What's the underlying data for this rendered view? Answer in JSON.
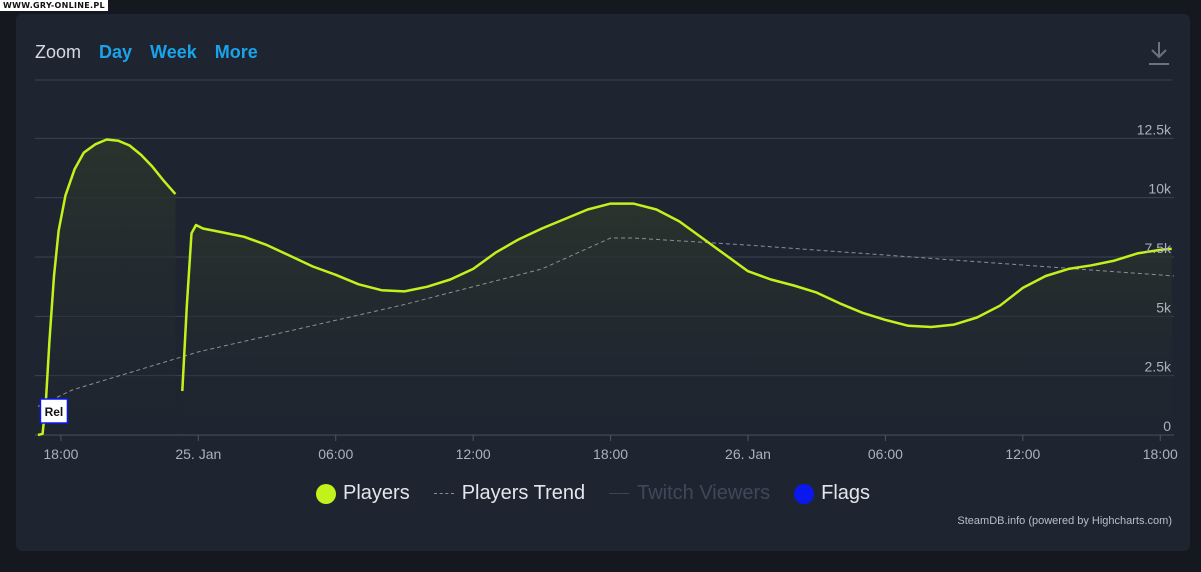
{
  "watermark": "WWW.GRY-ONLINE.PL",
  "zoom": {
    "label": "Zoom",
    "buttons": [
      "Day",
      "Week",
      "More"
    ]
  },
  "icons": {
    "download": "download-icon"
  },
  "colors": {
    "players": "#c2f21c",
    "trend": "#8a8f98",
    "twitch": "#3a4556",
    "flags": "#0a18ee",
    "grid": "#3a4352",
    "axis_text": "#aab2bd"
  },
  "legend": [
    {
      "label": "Players",
      "symbol": "dot",
      "color": "#c2f21c",
      "active": true
    },
    {
      "label": "Players Trend",
      "symbol": "dash",
      "color": "#8a8f98",
      "active": true
    },
    {
      "label": "Twitch Viewers",
      "symbol": "line",
      "color": "#3a4556",
      "active": false
    },
    {
      "label": "Flags",
      "symbol": "dot",
      "color": "#0a18ee",
      "active": true
    }
  ],
  "credits": "SteamDB.info (powered by Highcharts.com)",
  "chart_data": {
    "type": "line",
    "x_unit": "hours since 24 Jan 17:00",
    "xlim": [
      0,
      49.6
    ],
    "ylim": [
      0,
      15000
    ],
    "y_ticks": [
      {
        "value": 0,
        "label": "0"
      },
      {
        "value": 2500,
        "label": "2.5k"
      },
      {
        "value": 5000,
        "label": "5k"
      },
      {
        "value": 7500,
        "label": "7.5k"
      },
      {
        "value": 10000,
        "label": "10k"
      },
      {
        "value": 12500,
        "label": "12.5k"
      }
    ],
    "x_ticks": [
      {
        "value": 1,
        "label": "18:00"
      },
      {
        "value": 7,
        "label": "25. Jan"
      },
      {
        "value": 13,
        "label": "06:00"
      },
      {
        "value": 19,
        "label": "12:00"
      },
      {
        "value": 25,
        "label": "18:00"
      },
      {
        "value": 31,
        "label": "26. Jan"
      },
      {
        "value": 37,
        "label": "06:00"
      },
      {
        "value": 43,
        "label": "12:00"
      },
      {
        "value": 49,
        "label": "18:00"
      }
    ],
    "grid": true,
    "legend_position": "bottom",
    "series": [
      {
        "name": "Players",
        "segments": [
          [
            [
              0.0,
              0
            ],
            [
              0.2,
              50
            ],
            [
              0.35,
              1500
            ],
            [
              0.5,
              4000
            ],
            [
              0.7,
              6700
            ],
            [
              0.9,
              8600
            ],
            [
              1.2,
              10100
            ],
            [
              1.6,
              11200
            ],
            [
              2.0,
              11900
            ],
            [
              2.5,
              12250
            ],
            [
              3.0,
              12450
            ],
            [
              3.5,
              12400
            ],
            [
              4.0,
              12200
            ],
            [
              4.5,
              11800
            ],
            [
              5.0,
              11300
            ],
            [
              5.5,
              10700
            ],
            [
              6.0,
              10150
            ]
          ],
          [
            [
              6.3,
              1850
            ],
            [
              6.5,
              5500
            ],
            [
              6.7,
              8500
            ],
            [
              6.9,
              8850
            ],
            [
              7.2,
              8700
            ],
            [
              8.0,
              8550
            ],
            [
              9.0,
              8350
            ],
            [
              10.0,
              8000
            ],
            [
              11.0,
              7550
            ],
            [
              12.0,
              7100
            ],
            [
              13.0,
              6750
            ],
            [
              14.0,
              6350
            ],
            [
              15.0,
              6100
            ],
            [
              16.0,
              6050
            ],
            [
              17.0,
              6250
            ],
            [
              18.0,
              6550
            ],
            [
              19.0,
              7000
            ],
            [
              20.0,
              7700
            ],
            [
              21.0,
              8250
            ],
            [
              22.0,
              8700
            ],
            [
              23.0,
              9100
            ],
            [
              24.0,
              9500
            ],
            [
              25.0,
              9750
            ],
            [
              26.0,
              9750
            ],
            [
              27.0,
              9500
            ],
            [
              28.0,
              9000
            ],
            [
              29.0,
              8300
            ],
            [
              30.0,
              7600
            ],
            [
              31.0,
              6900
            ],
            [
              32.0,
              6550
            ],
            [
              33.0,
              6300
            ],
            [
              34.0,
              6000
            ],
            [
              35.0,
              5550
            ],
            [
              36.0,
              5150
            ],
            [
              37.0,
              4850
            ],
            [
              38.0,
              4600
            ],
            [
              39.0,
              4550
            ],
            [
              40.0,
              4650
            ],
            [
              41.0,
              4950
            ],
            [
              42.0,
              5450
            ],
            [
              43.0,
              6200
            ],
            [
              44.0,
              6700
            ],
            [
              45.0,
              7000
            ],
            [
              46.0,
              7150
            ],
            [
              47.0,
              7350
            ],
            [
              48.0,
              7650
            ],
            [
              49.0,
              7800
            ],
            [
              49.5,
              7850
            ]
          ]
        ]
      },
      {
        "name": "Players Trend",
        "points": [
          [
            0.0,
            1200
          ],
          [
            1.5,
            1900
          ],
          [
            7.0,
            3500
          ],
          [
            16.0,
            5500
          ],
          [
            22.0,
            7000
          ],
          [
            25.0,
            8300
          ],
          [
            26.0,
            8300
          ],
          [
            31.0,
            8000
          ],
          [
            49.6,
            6700
          ]
        ]
      }
    ],
    "flags": [
      {
        "x": 0.5,
        "label": "Rel"
      }
    ]
  }
}
